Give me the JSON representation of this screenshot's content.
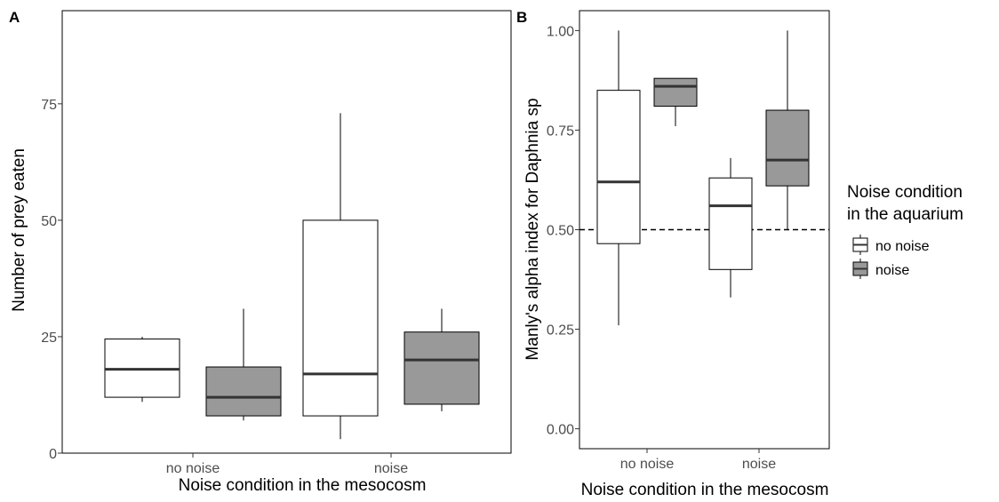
{
  "chart_data": [
    {
      "type": "boxplot",
      "panel_label": "A",
      "xlabel": "Noise condition in the mesocosm",
      "ylabel": "Number of prey eaten",
      "categories": [
        "no noise",
        "noise"
      ],
      "ylim": [
        0,
        95
      ],
      "yticks": [
        0,
        25,
        50,
        75
      ],
      "grid": false,
      "series": [
        {
          "name": "no noise",
          "boxes": [
            {
              "category": "no noise",
              "min": 11,
              "q1": 12,
              "median": 18,
              "q3": 24.5,
              "max": 25
            },
            {
              "category": "noise",
              "min": 3,
              "q1": 8,
              "median": 17,
              "q3": 50,
              "max": 73
            }
          ]
        },
        {
          "name": "noise",
          "boxes": [
            {
              "category": "no noise",
              "min": 7,
              "q1": 8,
              "median": 12,
              "q3": 18.5,
              "max": 31
            },
            {
              "category": "noise",
              "min": 9,
              "q1": 10.5,
              "median": 20,
              "q3": 26,
              "max": 31
            }
          ]
        }
      ]
    },
    {
      "type": "boxplot",
      "panel_label": "B",
      "xlabel": "Noise condition in the mesocosm",
      "ylabel": "Manly's alpha index for Daphnia sp",
      "categories": [
        "no noise",
        "noise"
      ],
      "ylim": [
        -0.05,
        1.05
      ],
      "yticks": [
        0.0,
        0.25,
        0.5,
        0.75,
        1.0
      ],
      "ytick_labels": [
        "0.00",
        "0.25",
        "0.50",
        "0.75",
        "1.00"
      ],
      "reference_line": {
        "y": 0.5,
        "style": "dashed"
      },
      "grid": false,
      "series": [
        {
          "name": "no noise",
          "boxes": [
            {
              "category": "no noise",
              "min": 0.26,
              "q1": 0.465,
              "median": 0.62,
              "q3": 0.85,
              "max": 1.0
            },
            {
              "category": "noise",
              "min": 0.33,
              "q1": 0.4,
              "median": 0.56,
              "q3": 0.63,
              "max": 0.68
            }
          ]
        },
        {
          "name": "noise",
          "boxes": [
            {
              "category": "no noise",
              "min": 0.76,
              "q1": 0.81,
              "median": 0.86,
              "q3": 0.88,
              "max": 0.88
            },
            {
              "category": "noise",
              "min": 0.5,
              "q1": 0.61,
              "median": 0.675,
              "q3": 0.8,
              "max": 1.0
            }
          ]
        }
      ]
    }
  ],
  "legend": {
    "title_line1": "Noise condition",
    "title_line2": "in the aquarium",
    "placement": "right",
    "items": [
      {
        "label": "no noise",
        "fill": "#ffffff"
      },
      {
        "label": "noise",
        "fill": "#999999"
      }
    ]
  },
  "colors": {
    "no_noise_fill": "#ffffff",
    "noise_fill": "#999999",
    "median": "#333333",
    "stroke": "#000000"
  }
}
